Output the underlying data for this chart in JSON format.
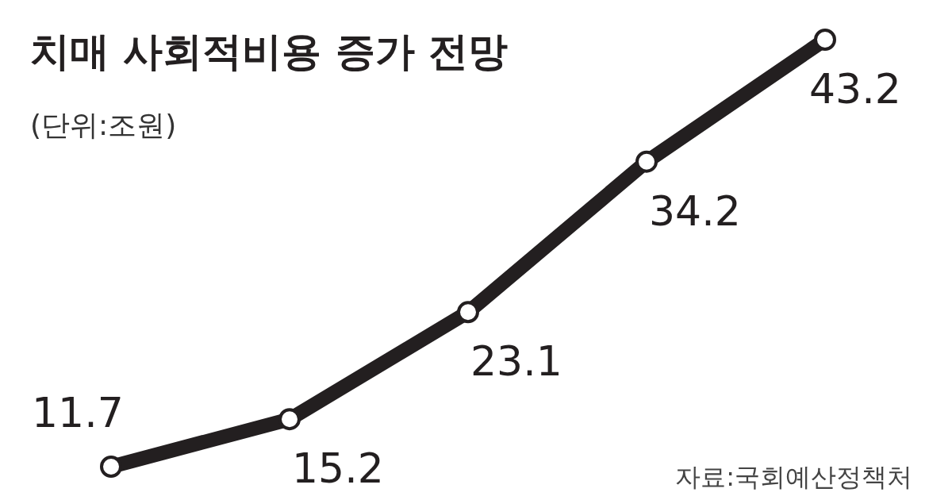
{
  "chart_data": {
    "type": "line",
    "title": "치매 사회적비용 증가 전망",
    "subtitle": "(단위:조원)",
    "categories": [
      null,
      null,
      null,
      null,
      null
    ],
    "series": [
      {
        "color": "#231f20",
        "values": [
          11.7,
          15.2,
          23.1,
          34.2,
          43.2
        ]
      }
    ],
    "data_labels": true,
    "marker": "circle",
    "line_style": "solid",
    "annotations": [
      "자료:국회예산정책처"
    ]
  }
}
